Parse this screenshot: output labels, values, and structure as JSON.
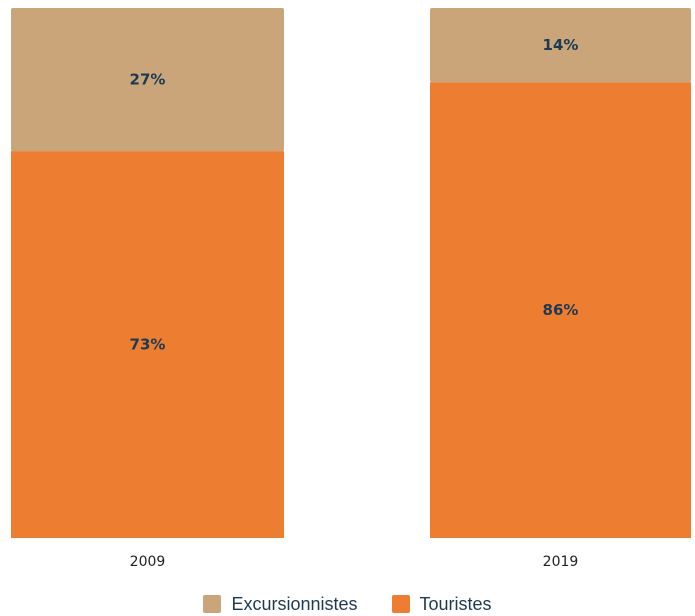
{
  "chart_data": {
    "type": "bar",
    "stacked": true,
    "percent": true,
    "categories": [
      "2009",
      "2019"
    ],
    "series": [
      {
        "name": "Touristes",
        "values": [
          73,
          86
        ],
        "labels": [
          "73%",
          "86%"
        ],
        "color": "#ed7d31"
      },
      {
        "name": "Excursionnistes",
        "values": [
          27,
          14
        ],
        "labels": [
          "27%",
          "14%"
        ],
        "color": "#caa57a"
      }
    ],
    "ylim": [
      0,
      100
    ],
    "grid": false,
    "legend": {
      "position": "bottom",
      "items": [
        {
          "name": "Excursionnistes",
          "color": "#caa57a"
        },
        {
          "name": "Touristes",
          "color": "#ed7d31"
        }
      ]
    }
  }
}
